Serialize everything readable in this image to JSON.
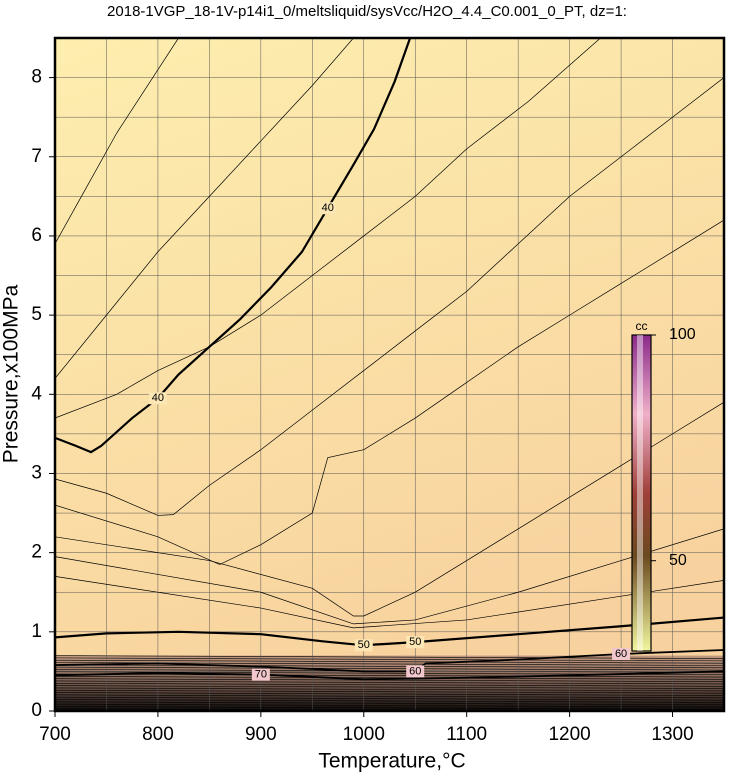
{
  "chart_data": {
    "type": "contour",
    "title": "2018-1VGP_18-1V-p14i1_0/meltsliquid/sysVcc/H2O_4.4_C0.001_0_PT, dz=1:",
    "x_label": "Temperature,°C",
    "y_label": "Pressure,x100MPa",
    "xlim": [
      700,
      1350
    ],
    "ylim": [
      0,
      8.5
    ],
    "xticks": [
      700,
      800,
      900,
      1000,
      1100,
      1200,
      1300
    ],
    "yticks": [
      0,
      1,
      2,
      3,
      4,
      5,
      6,
      7,
      8
    ],
    "x_grid": [
      750,
      850,
      950,
      1050,
      1150,
      1250,
      1350
    ],
    "y_grid": [
      0.5,
      1.5,
      2.5,
      3.5,
      4.5,
      5.5,
      6.5,
      7.5
    ],
    "grid": true,
    "contours": [
      {
        "level": 40,
        "width": 2.2,
        "x": [
          700,
          720,
          735,
          745,
          775,
          800,
          820,
          850,
          880,
          910,
          940,
          965,
          990,
          1010,
          1030,
          1045
        ],
        "y": [
          3.45,
          3.35,
          3.27,
          3.35,
          3.7,
          3.95,
          4.25,
          4.6,
          4.95,
          5.35,
          5.8,
          6.35,
          6.9,
          7.35,
          7.95,
          8.5
        ]
      },
      {
        "level": 50,
        "width": 2.2,
        "x": [
          700,
          750,
          820,
          900,
          960,
          1000,
          1050,
          1150,
          1250,
          1350
        ],
        "y": [
          0.93,
          0.98,
          1.0,
          0.97,
          0.88,
          0.83,
          0.87,
          0.97,
          1.07,
          1.18
        ]
      },
      {
        "level": 60,
        "width": 1.8,
        "x": [
          700,
          800,
          900,
          1000,
          1050,
          1060,
          1150,
          1250,
          1350
        ],
        "y": [
          0.58,
          0.6,
          0.56,
          0.5,
          0.5,
          0.6,
          0.65,
          0.72,
          0.77
        ]
      },
      {
        "level": 70,
        "width": 1.8,
        "x": [
          700,
          800,
          900,
          1000,
          1100,
          1200,
          1350
        ],
        "y": [
          0.45,
          0.48,
          0.46,
          0.4,
          0.42,
          0.45,
          0.5
        ]
      },
      {
        "width": 0.7,
        "x": [
          700,
          730,
          760,
          800,
          820
        ],
        "y": [
          5.9,
          6.6,
          7.3,
          8.1,
          8.5
        ]
      },
      {
        "width": 0.7,
        "x": [
          700,
          750,
          800,
          850,
          900,
          950,
          990
        ],
        "y": [
          4.2,
          5.0,
          5.8,
          6.5,
          7.2,
          7.9,
          8.5
        ]
      },
      {
        "width": 0.7,
        "x": [
          700,
          760,
          800,
          850,
          900,
          950,
          1000,
          1050,
          1100,
          1160,
          1230
        ],
        "y": [
          3.7,
          4.0,
          4.3,
          4.6,
          5.0,
          5.5,
          6.0,
          6.5,
          7.1,
          7.7,
          8.5
        ]
      },
      {
        "width": 0.7,
        "x": [
          700,
          750,
          800,
          815,
          850,
          900,
          950,
          1000,
          1050,
          1100,
          1150,
          1200,
          1260,
          1320,
          1350
        ],
        "y": [
          2.93,
          2.75,
          2.47,
          2.48,
          2.85,
          3.3,
          3.8,
          4.3,
          4.8,
          5.3,
          5.9,
          6.5,
          7.1,
          7.7,
          8.0
        ]
      },
      {
        "width": 0.7,
        "x": [
          700,
          800,
          860,
          900,
          950,
          965,
          1000,
          1050,
          1100,
          1150,
          1200,
          1250,
          1300,
          1350
        ],
        "y": [
          2.6,
          2.2,
          1.85,
          2.1,
          2.5,
          3.2,
          3.3,
          3.7,
          4.15,
          4.6,
          5.0,
          5.4,
          5.8,
          6.2
        ]
      },
      {
        "width": 0.7,
        "x": [
          700,
          850,
          950,
          990,
          1000,
          1050,
          1100,
          1150,
          1200,
          1250,
          1300,
          1350
        ],
        "y": [
          2.2,
          1.9,
          1.55,
          1.2,
          1.2,
          1.5,
          1.9,
          2.3,
          2.7,
          3.1,
          3.5,
          3.9
        ]
      },
      {
        "width": 0.7,
        "x": [
          700,
          900,
          990,
          1050,
          1150,
          1250,
          1350
        ],
        "y": [
          1.95,
          1.5,
          1.1,
          1.15,
          1.5,
          1.9,
          2.3
        ]
      },
      {
        "width": 0.7,
        "x": [
          700,
          900,
          990,
          1100,
          1250,
          1350
        ],
        "y": [
          1.7,
          1.3,
          1.05,
          1.15,
          1.45,
          1.65
        ]
      }
    ],
    "colorbar": {
      "label": "cc",
      "lim": [
        30,
        100
      ],
      "ticks": [
        50,
        100
      ]
    }
  }
}
